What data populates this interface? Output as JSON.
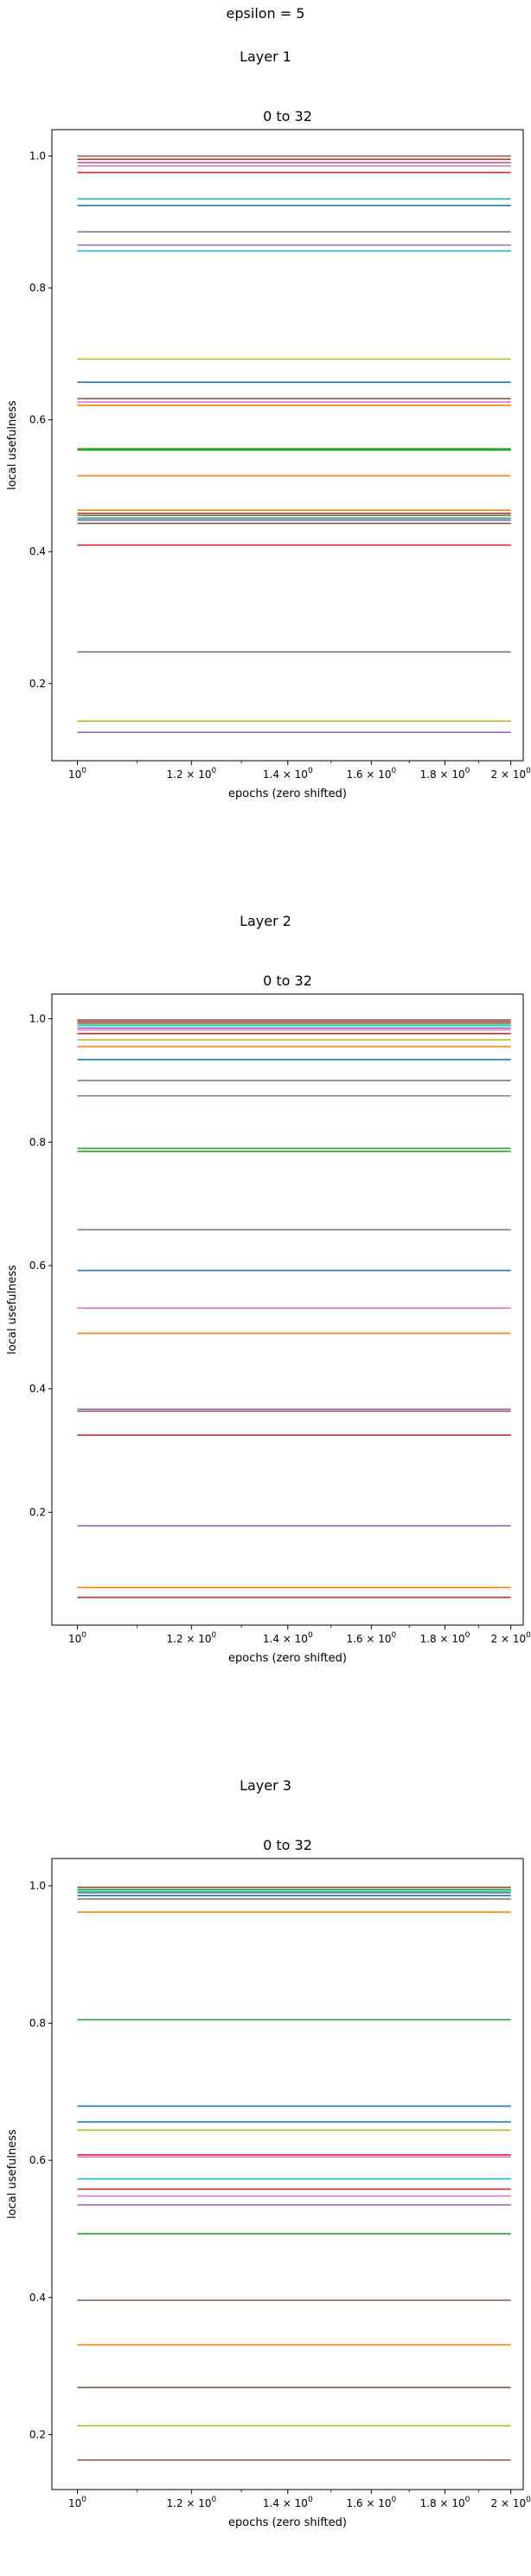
{
  "figure": {
    "suptitle": "epsilon = 5"
  },
  "chart_data": [
    {
      "type": "line",
      "section_title": "Layer 1",
      "title": "0 to 32",
      "xlabel": "epochs (zero shifted)",
      "ylabel": "local usefulness",
      "xscale": "log",
      "xlim": [
        0.96,
        2.04
      ],
      "ylim": [
        0.083,
        1.04
      ],
      "xticks": [
        {
          "value": 1.0,
          "base": "10",
          "exp": "0"
        },
        {
          "value": 1.2,
          "base": "1.2 × 10",
          "exp": "0"
        },
        {
          "value": 1.4,
          "base": "1.4 × 10",
          "exp": "0"
        },
        {
          "value": 1.6,
          "base": "1.6 × 10",
          "exp": "0"
        },
        {
          "value": 1.8,
          "base": "1.8 × 10",
          "exp": "0"
        },
        {
          "value": 2.0,
          "base": "2 × 10",
          "exp": "0"
        }
      ],
      "yticks": [
        {
          "value": 0.2,
          "label": "0.2"
        },
        {
          "value": 0.4,
          "label": "0.4"
        },
        {
          "value": 0.6,
          "label": "0.6"
        },
        {
          "value": 0.8,
          "label": "0.8"
        },
        {
          "value": 1.0,
          "label": "1.0"
        }
      ],
      "grid": false,
      "x": [
        1,
        2
      ],
      "series": [
        {
          "color": "#8c564b",
          "values": [
            1.0,
            1.0
          ]
        },
        {
          "color": "#d62728",
          "values": [
            0.995,
            0.995
          ]
        },
        {
          "color": "#9467bd",
          "values": [
            0.99,
            0.99
          ]
        },
        {
          "color": "#e377c2",
          "values": [
            0.985,
            0.985
          ]
        },
        {
          "color": "#d62728",
          "values": [
            0.975,
            0.975
          ]
        },
        {
          "color": "#17becf",
          "values": [
            0.935,
            0.935
          ]
        },
        {
          "color": "#1f77b4",
          "values": [
            0.925,
            0.925
          ]
        },
        {
          "color": "#7f7f7f",
          "values": [
            0.885,
            0.885
          ]
        },
        {
          "color": "#9467bd",
          "values": [
            0.865,
            0.865
          ]
        },
        {
          "color": "#17becf",
          "values": [
            0.856,
            0.856
          ]
        },
        {
          "color": "#bcbd22",
          "values": [
            0.692,
            0.692
          ]
        },
        {
          "color": "#1f77b4",
          "values": [
            0.657,
            0.657
          ]
        },
        {
          "color": "#8c564b",
          "values": [
            0.632,
            0.632
          ]
        },
        {
          "color": "#e377c2",
          "values": [
            0.627,
            0.627
          ]
        },
        {
          "color": "#ff7f0e",
          "values": [
            0.622,
            0.622
          ]
        },
        {
          "color": "#2ca02c",
          "values": [
            0.556,
            0.556
          ]
        },
        {
          "color": "#2ca02c",
          "values": [
            0.554,
            0.554
          ]
        },
        {
          "color": "#ff7f0e",
          "values": [
            0.515,
            0.515
          ]
        },
        {
          "color": "#ff7f0e",
          "values": [
            0.463,
            0.463
          ]
        },
        {
          "color": "#d62728",
          "values": [
            0.458,
            0.458
          ]
        },
        {
          "color": "#2ca02c",
          "values": [
            0.455,
            0.455
          ]
        },
        {
          "color": "#7f7f7f",
          "values": [
            0.451,
            0.451
          ]
        },
        {
          "color": "#1f77b4",
          "values": [
            0.448,
            0.448
          ]
        },
        {
          "color": "#8c564b",
          "values": [
            0.443,
            0.443
          ]
        },
        {
          "color": "#d62728",
          "values": [
            0.41,
            0.41
          ]
        },
        {
          "color": "#7f7f7f",
          "values": [
            0.248,
            0.248
          ]
        },
        {
          "color": "#bcbd22",
          "values": [
            0.143,
            0.143
          ]
        },
        {
          "color": "#9467bd",
          "values": [
            0.126,
            0.126
          ]
        }
      ]
    },
    {
      "type": "line",
      "section_title": "Layer 2",
      "title": "0 to 32",
      "xlabel": "epochs (zero shifted)",
      "ylabel": "local usefulness",
      "xscale": "log",
      "xlim": [
        0.96,
        2.04
      ],
      "ylim": [
        0.017,
        1.04
      ],
      "xticks": [
        {
          "value": 1.0,
          "base": "10",
          "exp": "0"
        },
        {
          "value": 1.2,
          "base": "1.2 × 10",
          "exp": "0"
        },
        {
          "value": 1.4,
          "base": "1.4 × 10",
          "exp": "0"
        },
        {
          "value": 1.6,
          "base": "1.6 × 10",
          "exp": "0"
        },
        {
          "value": 1.8,
          "base": "1.8 × 10",
          "exp": "0"
        },
        {
          "value": 2.0,
          "base": "2 × 10",
          "exp": "0"
        }
      ],
      "yticks": [
        {
          "value": 0.2,
          "label": "0.2"
        },
        {
          "value": 0.4,
          "label": "0.4"
        },
        {
          "value": 0.6,
          "label": "0.6"
        },
        {
          "value": 0.8,
          "label": "0.8"
        },
        {
          "value": 1.0,
          "label": "1.0"
        }
      ],
      "grid": false,
      "x": [
        1,
        2
      ],
      "series": [
        {
          "color": "#8c564b",
          "values": [
            0.998,
            0.998
          ]
        },
        {
          "color": "#d62728",
          "values": [
            0.995,
            0.995
          ]
        },
        {
          "color": "#2ca02c",
          "values": [
            0.992,
            0.992
          ]
        },
        {
          "color": "#17becf",
          "values": [
            0.989,
            0.989
          ]
        },
        {
          "color": "#9467bd",
          "values": [
            0.985,
            0.985
          ]
        },
        {
          "color": "#e377c2",
          "values": [
            0.982,
            0.982
          ]
        },
        {
          "color": "#d62728",
          "values": [
            0.976,
            0.976
          ]
        },
        {
          "color": "#bcbd22",
          "values": [
            0.966,
            0.966
          ]
        },
        {
          "color": "#ff7f0e",
          "values": [
            0.955,
            0.955
          ]
        },
        {
          "color": "#1f77b4",
          "values": [
            0.934,
            0.934
          ]
        },
        {
          "color": "#7f7f7f",
          "values": [
            0.9,
            0.9
          ]
        },
        {
          "color": "#9467bd",
          "values": [
            0.875,
            0.875
          ]
        },
        {
          "color": "#2ca02c",
          "values": [
            0.79,
            0.79
          ]
        },
        {
          "color": "#2ca02c",
          "values": [
            0.785,
            0.785
          ]
        },
        {
          "color": "#7f7f7f",
          "values": [
            0.658,
            0.658
          ]
        },
        {
          "color": "#1f77b4",
          "values": [
            0.592,
            0.592
          ]
        },
        {
          "color": "#e377c2",
          "values": [
            0.531,
            0.531
          ]
        },
        {
          "color": "#ff7f0e",
          "values": [
            0.49,
            0.49
          ]
        },
        {
          "color": "#9467bd",
          "values": [
            0.367,
            0.367
          ]
        },
        {
          "color": "#8c564b",
          "values": [
            0.364,
            0.364
          ]
        },
        {
          "color": "#d62728",
          "values": [
            0.325,
            0.325
          ]
        },
        {
          "color": "#9467bd",
          "values": [
            0.178,
            0.178
          ]
        },
        {
          "color": "#ff7f0e",
          "values": [
            0.078,
            0.078
          ]
        },
        {
          "color": "#d62728",
          "values": [
            0.062,
            0.062
          ]
        }
      ]
    },
    {
      "type": "line",
      "section_title": "Layer 3",
      "title": "0 to 32",
      "xlabel": "epochs (zero shifted)",
      "ylabel": "local usefulness",
      "xscale": "log",
      "xlim": [
        0.96,
        2.04
      ],
      "ylim": [
        0.12,
        1.04
      ],
      "xticks": [
        {
          "value": 1.0,
          "base": "10",
          "exp": "0"
        },
        {
          "value": 1.2,
          "base": "1.2 × 10",
          "exp": "0"
        },
        {
          "value": 1.4,
          "base": "1.4 × 10",
          "exp": "0"
        },
        {
          "value": 1.6,
          "base": "1.6 × 10",
          "exp": "0"
        },
        {
          "value": 1.8,
          "base": "1.8 × 10",
          "exp": "0"
        },
        {
          "value": 2.0,
          "base": "2 × 10",
          "exp": "0"
        }
      ],
      "yticks": [
        {
          "value": 0.2,
          "label": "0.2"
        },
        {
          "value": 0.4,
          "label": "0.4"
        },
        {
          "value": 0.6,
          "label": "0.6"
        },
        {
          "value": 0.8,
          "label": "0.8"
        },
        {
          "value": 1.0,
          "label": "1.0"
        }
      ],
      "grid": false,
      "x": [
        1,
        2
      ],
      "series": [
        {
          "color": "#8c564b",
          "values": [
            0.998,
            0.998
          ]
        },
        {
          "color": "#2ca02c",
          "values": [
            0.995,
            0.995
          ]
        },
        {
          "color": "#17becf",
          "values": [
            0.992,
            0.992
          ]
        },
        {
          "color": "#7f7f7f",
          "values": [
            0.99,
            0.99
          ]
        },
        {
          "color": "#1f77b4",
          "values": [
            0.986,
            0.986
          ]
        },
        {
          "color": "#7f7f7f",
          "values": [
            0.981,
            0.981
          ]
        },
        {
          "color": "#ff7f0e",
          "values": [
            0.962,
            0.962
          ]
        },
        {
          "color": "#2ca02c",
          "values": [
            0.805,
            0.805
          ]
        },
        {
          "color": "#1f77b4",
          "values": [
            0.679,
            0.679
          ]
        },
        {
          "color": "#1f77b4",
          "values": [
            0.656,
            0.656
          ]
        },
        {
          "color": "#bcbd22",
          "values": [
            0.644,
            0.644
          ]
        },
        {
          "color": "#d62728",
          "values": [
            0.608,
            0.608
          ]
        },
        {
          "color": "#e377c2",
          "values": [
            0.605,
            0.605
          ]
        },
        {
          "color": "#17becf",
          "values": [
            0.573,
            0.573
          ]
        },
        {
          "color": "#d62728",
          "values": [
            0.558,
            0.558
          ]
        },
        {
          "color": "#e377c2",
          "values": [
            0.548,
            0.548
          ]
        },
        {
          "color": "#9467bd",
          "values": [
            0.535,
            0.535
          ]
        },
        {
          "color": "#2ca02c",
          "values": [
            0.493,
            0.493
          ]
        },
        {
          "color": "#8c564b",
          "values": [
            0.396,
            0.396
          ]
        },
        {
          "color": "#ff7f0e",
          "values": [
            0.331,
            0.331
          ]
        },
        {
          "color": "#8c564b",
          "values": [
            0.269,
            0.269
          ]
        },
        {
          "color": "#bcbd22",
          "values": [
            0.213,
            0.213
          ]
        },
        {
          "color": "#8c564b",
          "values": [
            0.163,
            0.163
          ]
        }
      ]
    }
  ]
}
